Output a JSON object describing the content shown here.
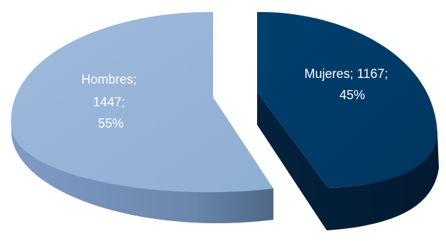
{
  "chart_data": {
    "type": "pie",
    "categories": [
      "Hombres",
      "Mujeres"
    ],
    "values": [
      1447,
      1167
    ],
    "percent": [
      55,
      45
    ],
    "labels": [
      [
        "Hombres;",
        "1447;",
        "55%"
      ],
      [
        "Mujeres; 1167;",
        "45%"
      ]
    ],
    "colors": {
      "Hombres": "#95b3d7",
      "Mujeres": "#003b66"
    },
    "legend": "none",
    "style": "3d-exploded"
  }
}
